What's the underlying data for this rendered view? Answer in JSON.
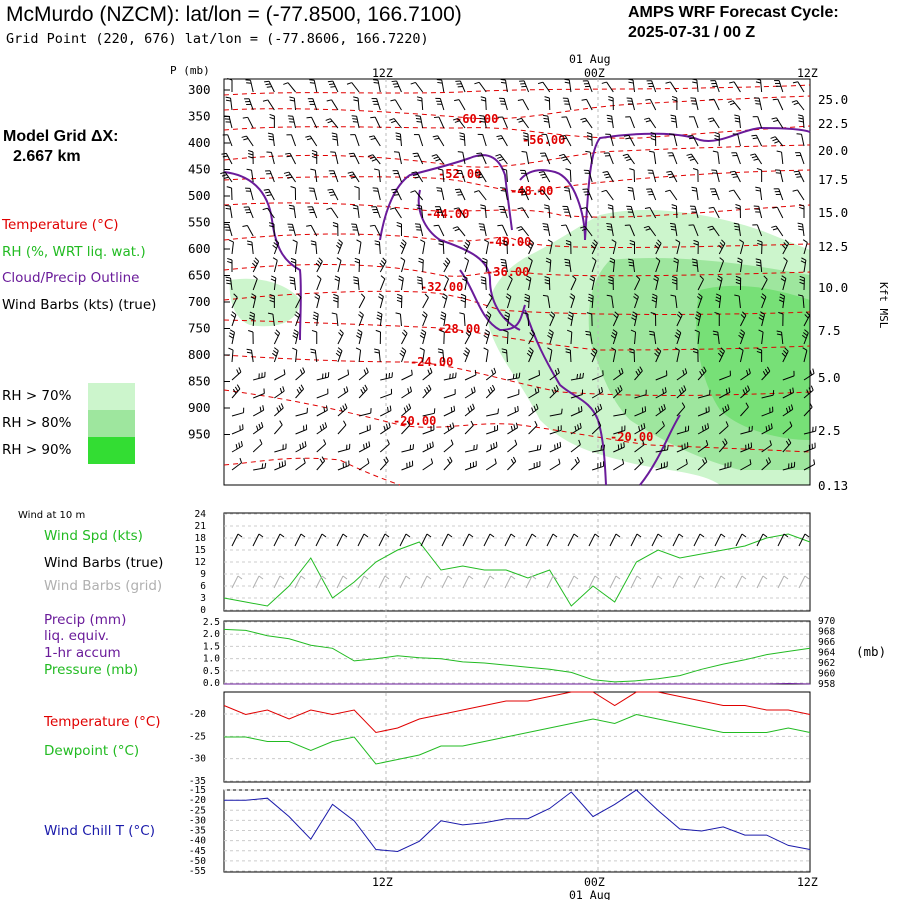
{
  "header": {
    "title": "McMurdo (NZCM):  lat/lon = (-77.8500, 166.7100)",
    "subtitle": "Grid Point (220, 676) lat/lon = (-77.8606, 166.7220)",
    "cycle_line1": "AMPS WRF Forecast Cycle:",
    "cycle_line2": "2025-07-31 / 00  Z"
  },
  "sidebar": {
    "grid_label_1": "Model Grid ΔX:",
    "grid_label_2": "2.667 km",
    "legend_temperature": "Temperature (°C)",
    "legend_rh": "RH (%, WRT liq. wat.)",
    "legend_cloud": "Cloud/Precip Outline",
    "legend_wind": "Wind Barbs (kts) (true)",
    "rh70": "RH > 70%",
    "rh80": "RH > 80%",
    "rh90": "RH > 90%",
    "wind10m": "Wind at 10 m",
    "wind_spd": "Wind Spd (kts)",
    "wind_barbs_true": "Wind Barbs (true)",
    "wind_barbs_grid": "Wind Barbs (grid)",
    "precip_1": "Precip (mm)",
    "precip_2": "liq. equiv.",
    "precip_3": "1-hr accum",
    "pressure": "Pressure (mb)",
    "temperature": "Temperature (°C)",
    "dewpoint": "Dewpoint (°C)",
    "windchill": "Wind Chill T (°C)"
  },
  "colors": {
    "temperature": "#e00000",
    "rh_green": "#22bb22",
    "cloud": "#6a1b9a",
    "rh70": "#ccf5cc",
    "rh80": "#9ee69e",
    "rh90": "#33dd33",
    "windchill": "#1a1aaa",
    "grid_barb": "#b0b0b0"
  },
  "chart_data": [
    {
      "type": "contour",
      "panel": "cross-section",
      "ylabel": "P (mb)",
      "right_label": "Kft MSL",
      "p_ticks": [
        "300",
        "350",
        "400",
        "450",
        "500",
        "550",
        "600",
        "650",
        "700",
        "750",
        "800",
        "850",
        "900",
        "950"
      ],
      "kft_ticks": [
        "25.0",
        "22.5",
        "20.0",
        "17.5",
        "15.0",
        "12.5",
        "10.0",
        "7.5",
        "5.0",
        "2.5",
        "0.13"
      ],
      "time_ticks_top": [
        "12Z",
        "00Z",
        "12Z"
      ],
      "date_label_top": "01 Aug",
      "temperature_contour_labels": [
        "-60.00",
        "-56.00",
        "-52.00",
        "-48.00",
        "-44.00",
        "-40.00",
        "-36.00",
        "-32.00",
        "-28.00",
        "-24.00",
        "-20.00",
        "-20.00"
      ]
    },
    {
      "type": "line",
      "panel": "wind",
      "ylim": [
        0,
        24
      ],
      "yticks": [
        "24",
        "21",
        "18",
        "15",
        "12",
        "9",
        "6",
        "3",
        "0"
      ],
      "series": [
        {
          "name": "Wind Spd (kts)",
          "values": [
            3,
            2,
            1,
            6,
            13,
            3,
            7,
            12,
            15,
            17,
            10,
            11,
            10,
            10,
            8,
            10,
            1,
            6,
            2,
            12,
            15,
            13,
            14,
            15,
            16,
            18,
            19,
            17
          ]
        }
      ]
    },
    {
      "type": "line",
      "panel": "precip-pressure",
      "ylim_left": [
        0,
        2.5
      ],
      "left_ticks": [
        "2.5",
        "2.0",
        "1.5",
        "1.0",
        "0.5",
        "0.0"
      ],
      "right_ticks": [
        "970",
        "968",
        "966",
        "964",
        "962",
        "960",
        "958"
      ],
      "right_unit": "(mb)",
      "series": [
        {
          "name": "Pressure (mb)",
          "values": [
            968.4,
            968.2,
            967.2,
            966.6,
            965.4,
            964.8,
            962.4,
            962.8,
            963.4,
            963.0,
            962.8,
            962.2,
            962.0,
            961.6,
            961.2,
            960.8,
            960.2,
            958.8,
            958.4,
            958.6,
            959.0,
            959.6,
            960.8,
            961.8,
            962.6,
            963.6,
            964.2,
            964.8
          ]
        },
        {
          "name": "Precip (mm)",
          "values": [
            0,
            0,
            0,
            0,
            0,
            0,
            0,
            0,
            0,
            0,
            0,
            0,
            0,
            0,
            0,
            0,
            0,
            0,
            0,
            0,
            0,
            0,
            0,
            0,
            0,
            0,
            0.02,
            0
          ]
        }
      ]
    },
    {
      "type": "line",
      "panel": "temperature",
      "ylim": [
        -35,
        -15
      ],
      "yticks": [
        "-20",
        "-25",
        "-30",
        "-35"
      ],
      "series": [
        {
          "name": "Temperature (°C)",
          "values": [
            -18,
            -20,
            -19,
            -21,
            -19,
            -20,
            -19,
            -24,
            -23,
            -21,
            -20,
            -19,
            -18,
            -17,
            -17,
            -16,
            -15,
            -15,
            -18,
            -15,
            -15,
            -16,
            -17,
            -18,
            -18,
            -19,
            -19,
            -20
          ]
        },
        {
          "name": "Dewpoint (°C)",
          "values": [
            -25,
            -25,
            -26,
            -26,
            -28,
            -26,
            -25,
            -31,
            -30,
            -29,
            -27,
            -27,
            -26,
            -25,
            -24,
            -23,
            -22,
            -21,
            -22,
            -20,
            -21,
            -22,
            -23,
            -24,
            -24,
            -24,
            -23,
            -24
          ]
        }
      ]
    },
    {
      "type": "line",
      "panel": "windchill",
      "ylim": [
        -55,
        -15
      ],
      "yticks": [
        "-15",
        "-20",
        "-25",
        "-30",
        "-35",
        "-40",
        "-45",
        "-50",
        "-55"
      ],
      "series": [
        {
          "name": "Wind Chill T (°C)",
          "values": [
            -20,
            -20,
            -19,
            -28,
            -39,
            -22,
            -30,
            -44,
            -45,
            -40,
            -30,
            -32,
            -31,
            -29,
            -29,
            -24,
            -16,
            -28,
            -22,
            -15,
            -25,
            -34,
            -35,
            -33,
            -37,
            -37,
            -42,
            -44
          ]
        }
      ]
    }
  ],
  "bottom_axis": {
    "ticks": [
      "12Z",
      "00Z",
      "12Z"
    ],
    "date": "01 Aug"
  }
}
